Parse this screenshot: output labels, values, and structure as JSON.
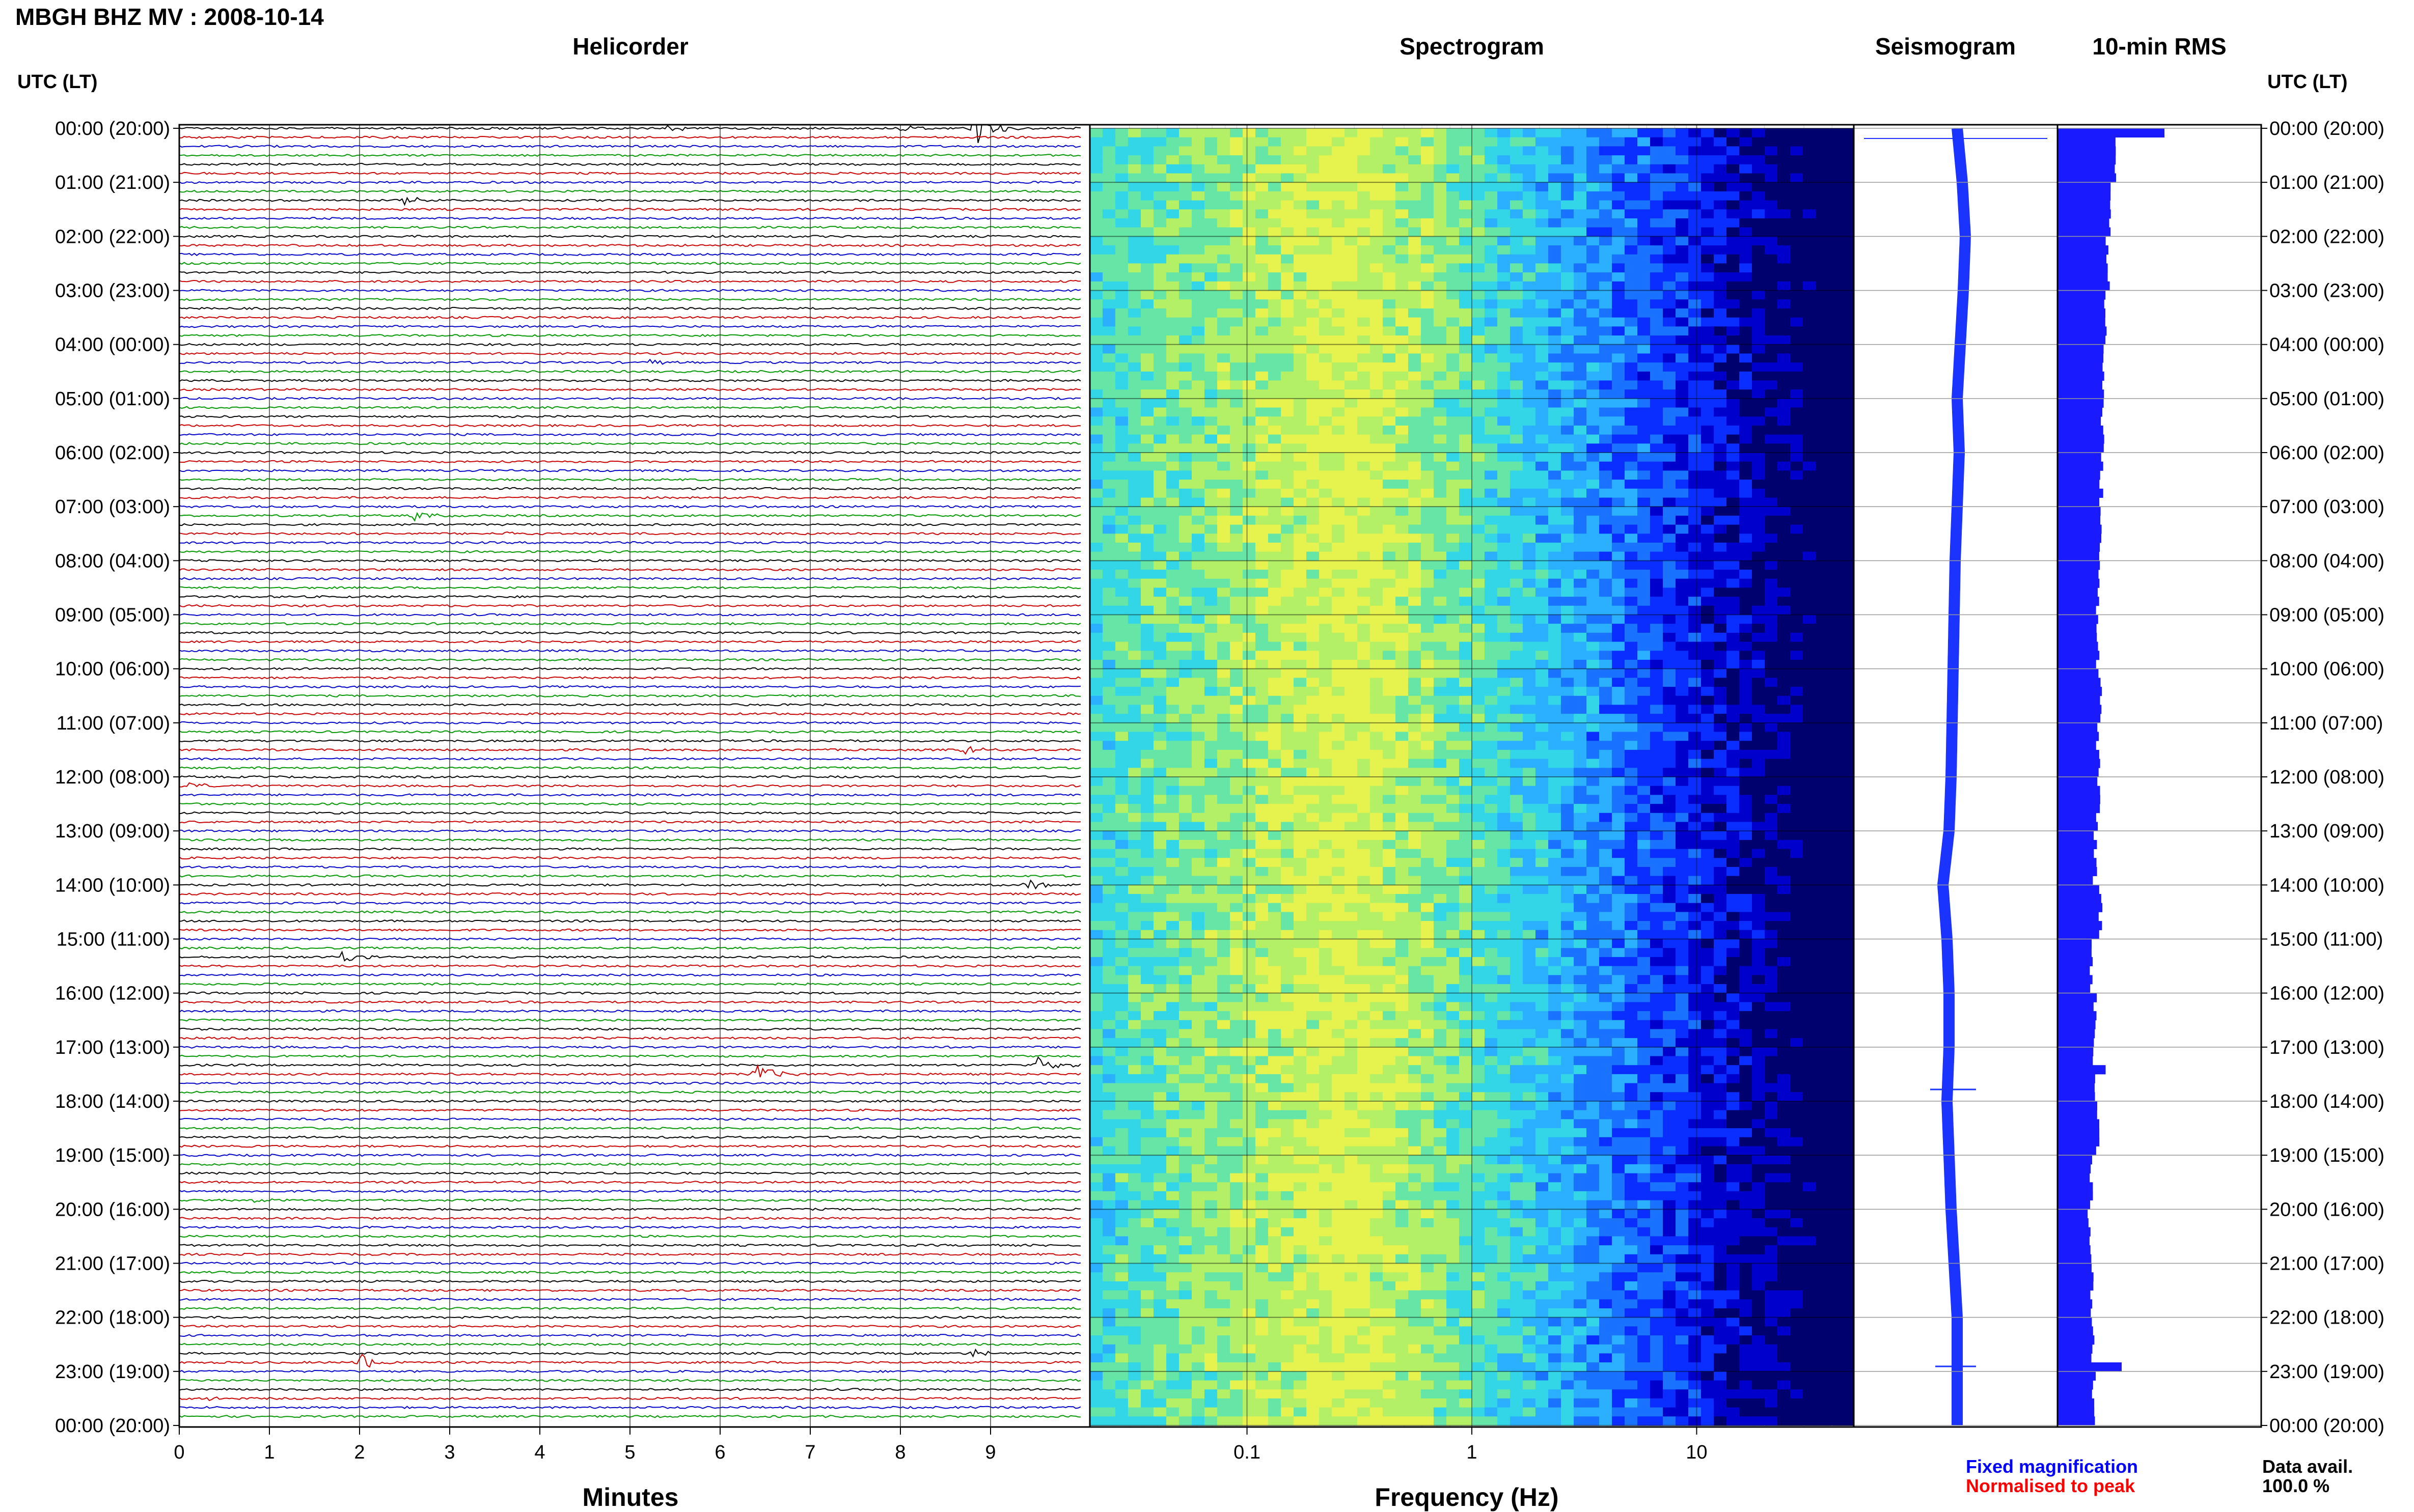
{
  "header": {
    "title": "MBGH BHZ MV : 2008-10-14"
  },
  "panels": {
    "helicorder_title": "Helicorder",
    "spectrogram_title": "Spectrogram",
    "seismogram_title": "Seismogram",
    "rms_title": "10-min RMS"
  },
  "axes": {
    "left_header": "UTC (LT)",
    "right_header": "UTC (LT)",
    "helicorder_xlabel": "Minutes",
    "spectrogram_xlabel": "Frequency (Hz)"
  },
  "legend": {
    "fixed_label": "Fixed magnification",
    "fixed_color": "#0000ff",
    "normalised_label": "Normalised to peak",
    "normalised_color": "#ff0000",
    "availability_label": "Data avail.",
    "availability_value": "100.0 %"
  },
  "colors": {
    "trace_cycle": [
      "#000000",
      "#cc0000",
      "#0000cc",
      "#009900"
    ],
    "seismogram": "#1a33ff",
    "rms_bar": "#1a1aff"
  },
  "chart_data": [
    {
      "type": "line",
      "name": "helicorder",
      "title": "Helicorder",
      "xlabel": "Minutes",
      "xticks": [
        "0",
        "1",
        "2",
        "3",
        "4",
        "5",
        "6",
        "7",
        "8",
        "9"
      ],
      "xlim": [
        0,
        10
      ],
      "rows_per_day": 144,
      "row_minutes": 10,
      "time_labels": [
        "00:00 (20:00)",
        "01:00 (21:00)",
        "02:00 (22:00)",
        "03:00 (23:00)",
        "04:00 (00:00)",
        "05:00 (01:00)",
        "06:00 (02:00)",
        "07:00 (03:00)",
        "08:00 (04:00)",
        "09:00 (05:00)",
        "10:00 (06:00)",
        "11:00 (07:00)",
        "12:00 (08:00)",
        "13:00 (09:00)",
        "14:00 (10:00)",
        "15:00 (11:00)",
        "16:00 (12:00)",
        "17:00 (13:00)",
        "18:00 (14:00)",
        "19:00 (15:00)",
        "20:00 (16:00)",
        "21:00 (17:00)",
        "22:00 (18:00)",
        "23:00 (19:00)",
        "00:00 (20:00)"
      ],
      "events": [
        {
          "row": 0,
          "minute": 8.8,
          "amplitude": 1.0
        },
        {
          "row": 0,
          "minute": 8.0,
          "amplitude": 0.25
        },
        {
          "row": 0,
          "minute": 5.4,
          "amplitude": 0.15
        },
        {
          "row": 8,
          "minute": 2.5,
          "amplitude": 0.15
        },
        {
          "row": 26,
          "minute": 5.2,
          "amplitude": 0.15
        },
        {
          "row": 43,
          "minute": 2.6,
          "amplitude": 0.2
        },
        {
          "row": 45,
          "minute": 3.6,
          "amplitude": 0.12
        },
        {
          "row": 69,
          "minute": 8.7,
          "amplitude": 0.18
        },
        {
          "row": 73,
          "minute": 0.1,
          "amplitude": 0.18
        },
        {
          "row": 84,
          "minute": 9.4,
          "amplitude": 0.25
        },
        {
          "row": 92,
          "minute": 1.8,
          "amplitude": 0.2
        },
        {
          "row": 104,
          "minute": 9.5,
          "amplitude": 0.35
        },
        {
          "row": 105,
          "minute": 6.4,
          "amplitude": 0.4
        },
        {
          "row": 119,
          "minute": 0.8,
          "amplitude": 0.15
        },
        {
          "row": 136,
          "minute": 8.8,
          "amplitude": 0.2
        },
        {
          "row": 137,
          "minute": 2.0,
          "amplitude": 0.35
        },
        {
          "row": 141,
          "minute": 0.3,
          "amplitude": 0.12
        }
      ]
    },
    {
      "type": "heatmap",
      "name": "spectrogram",
      "title": "Spectrogram",
      "xlabel": "Frequency (Hz)",
      "xscale": "log",
      "xlim": [
        0.02,
        50
      ],
      "xticks": [
        "0.1",
        "1",
        "10"
      ],
      "colormap": [
        "#00006e",
        "#0000cc",
        "#0a2eff",
        "#1a73ff",
        "#2ab0ff",
        "#33d6e6",
        "#66e6a6",
        "#b3f066",
        "#e6f24d"
      ],
      "peak_frequency_hz": 0.3
    },
    {
      "type": "line",
      "name": "seismogram",
      "title": "Seismogram",
      "hours": [
        0,
        1,
        2,
        3,
        4,
        5,
        6,
        7,
        8,
        9,
        10,
        11,
        12,
        13,
        14,
        15,
        16,
        17,
        18,
        19,
        20,
        21,
        22,
        23,
        24
      ],
      "offset": [
        0.0,
        0.05,
        0.08,
        0.06,
        0.03,
        0.0,
        0.02,
        0.0,
        -0.02,
        -0.03,
        -0.04,
        -0.05,
        -0.06,
        -0.08,
        -0.14,
        -0.1,
        -0.08,
        -0.08,
        -0.1,
        -0.08,
        -0.06,
        -0.03,
        0.0,
        0.0,
        0.0
      ]
    },
    {
      "type": "bar",
      "name": "rms",
      "title": "10-min RMS",
      "orientation": "horizontal",
      "note": "144 bars (one per 10 minutes); values relative to the day peak",
      "hourly_values": [
        0.55,
        0.5,
        0.47,
        0.45,
        0.43,
        0.42,
        0.41,
        0.4,
        0.38,
        0.38,
        0.4,
        0.38,
        0.38,
        0.35,
        0.4,
        0.32,
        0.35,
        0.35,
        0.38,
        0.32,
        0.3,
        0.32,
        0.33,
        0.34
      ],
      "peaks": [
        {
          "row": 0,
          "value": 1.0
        },
        {
          "row": 104,
          "value": 0.45
        },
        {
          "row": 137,
          "value": 0.6
        }
      ]
    }
  ]
}
